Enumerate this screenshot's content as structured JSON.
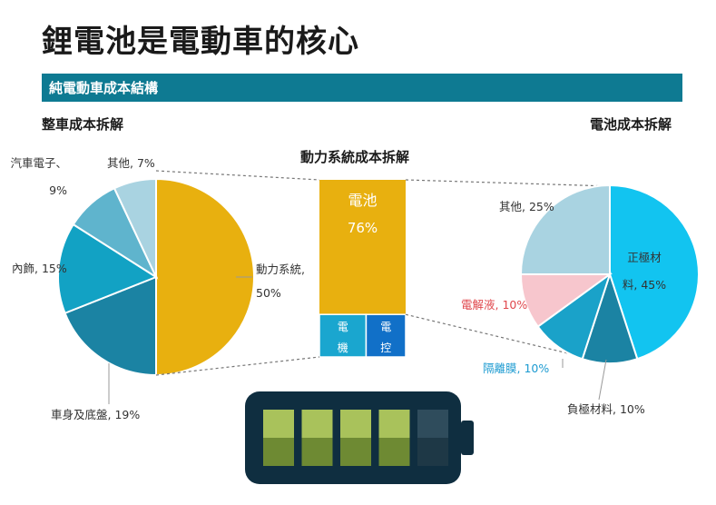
{
  "title": "鋰電池是電動車的核心",
  "banner": "純電動車成本結構",
  "chart_data": [
    {
      "type": "pie",
      "title": "整車成本拆解",
      "slices": [
        {
          "label": "動力系統",
          "value": 50,
          "display": "50%",
          "color": "#e8b00f"
        },
        {
          "label": "車身及底盤",
          "value": 19,
          "display": "19%",
          "color": "#1b83a3"
        },
        {
          "label": "內飾",
          "value": 15,
          "display": "15%",
          "color": "#12a2c4"
        },
        {
          "label": "汽車電子",
          "value": 9,
          "display": "9%",
          "color": "#5fb4cd"
        },
        {
          "label": "其他",
          "value": 7,
          "display": "7%",
          "color": "#a9d3e1"
        }
      ]
    },
    {
      "type": "bar",
      "title": "動力系統成本拆解",
      "stacked": true,
      "segments": [
        {
          "label": "電池",
          "value": 76,
          "display": "76%",
          "color": "#e8b00f"
        },
        {
          "label": "電機",
          "value": 13,
          "display": "13%",
          "color": "#1aa6cf"
        },
        {
          "label": "電控",
          "value": 11,
          "display": "11%",
          "color": "#1170c8"
        }
      ]
    },
    {
      "type": "pie",
      "title": "電池成本拆解",
      "slices": [
        {
          "label": "正極材料",
          "value": 45,
          "display": "45%",
          "color": "#12c4f0"
        },
        {
          "label": "負極材料",
          "value": 10,
          "display": "10%",
          "color": "#1b83a3"
        },
        {
          "label": "隔離膜",
          "value": 10,
          "display": "10%",
          "color": "#1aa2c9"
        },
        {
          "label": "電解液",
          "value": 10,
          "display": "10%",
          "color": "#f7c6cd"
        },
        {
          "label": "其他",
          "value": 25,
          "display": "25%",
          "color": "#a9d3e1"
        }
      ]
    }
  ],
  "colors": {
    "banner": "#0e7a92",
    "battery_body": "#0f2e40",
    "battery_cell_top": "#a9c25b",
    "battery_cell_bottom": "#6e8a33",
    "battery_empty_top": "#2f4c5c",
    "battery_empty_bottom": "#1e3846"
  },
  "battery_icon": {
    "cells_total": 5,
    "cells_filled": 4
  }
}
